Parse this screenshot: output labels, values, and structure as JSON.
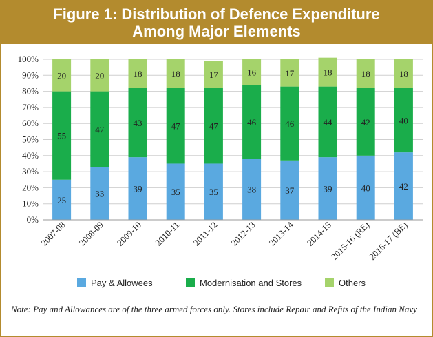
{
  "header": {
    "title_line1": "Figure 1: Distribution of Defence Expenditure",
    "title_line2": "Among Major Elements"
  },
  "note": "Note: Pay and Allowances are of the three armed forces only. Stores include Repair and Refits of the Indian Navy",
  "colors": {
    "frame": "#b38b2e",
    "pay": "#5aa9e0",
    "modernisation": "#1aad4b",
    "others": "#a5d36b",
    "grid": "#cfcfcf"
  },
  "chart_data": {
    "type": "bar",
    "stacked": true,
    "percent": true,
    "categories": [
      "2007-08",
      "2008-09",
      "2009-10",
      "2010-11",
      "2011-12",
      "2012-13",
      "2013-14",
      "2014-15",
      "2015-16 (RE)",
      "2016-17 (BE)"
    ],
    "series": [
      {
        "name": "Pay & Allowees",
        "values": [
          25,
          33,
          39,
          35,
          35,
          38,
          37,
          39,
          40,
          42
        ]
      },
      {
        "name": "Modernisation and Stores",
        "values": [
          55,
          47,
          43,
          47,
          47,
          46,
          46,
          44,
          42,
          40
        ]
      },
      {
        "name": "Others",
        "values": [
          20,
          20,
          18,
          18,
          17,
          16,
          17,
          18,
          18,
          18
        ]
      }
    ],
    "yticks": [
      "0%",
      "10%",
      "20%",
      "30%",
      "40%",
      "50%",
      "60%",
      "70%",
      "80%",
      "90%",
      "100%"
    ],
    "ylim": [
      0,
      100
    ],
    "grid": true,
    "legend_position": "bottom"
  }
}
